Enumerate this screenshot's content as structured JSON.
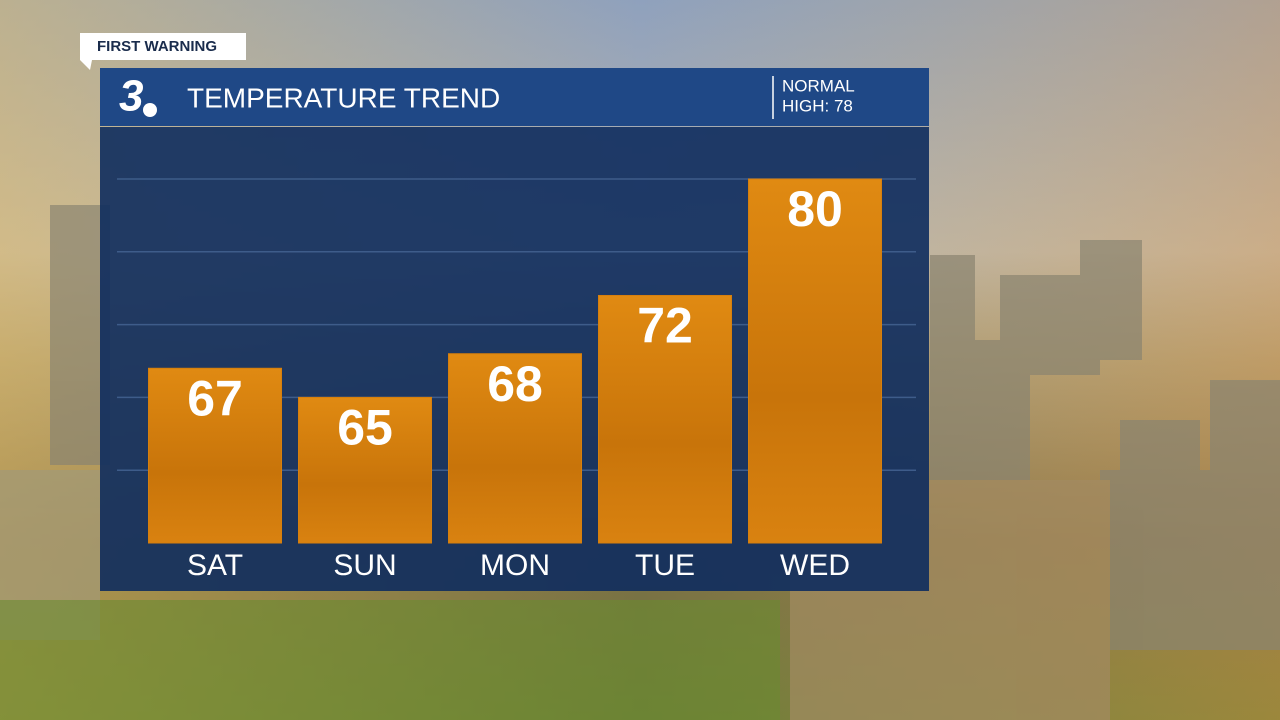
{
  "banner": "FIRST WARNING",
  "logo": "3",
  "normal_label": "NORMAL",
  "normal_high": "HIGH: 78",
  "chart_data": {
    "type": "bar",
    "title": "TEMPERATURE TREND",
    "categories": [
      "SAT",
      "SUN",
      "MON",
      "TUE",
      "WED"
    ],
    "values": [
      67,
      65,
      68,
      72,
      80
    ],
    "color": "#d77f0c",
    "ylim": [
      55,
      80
    ],
    "ygrid": [
      60,
      65,
      70,
      75,
      80
    ],
    "grid": true
  }
}
